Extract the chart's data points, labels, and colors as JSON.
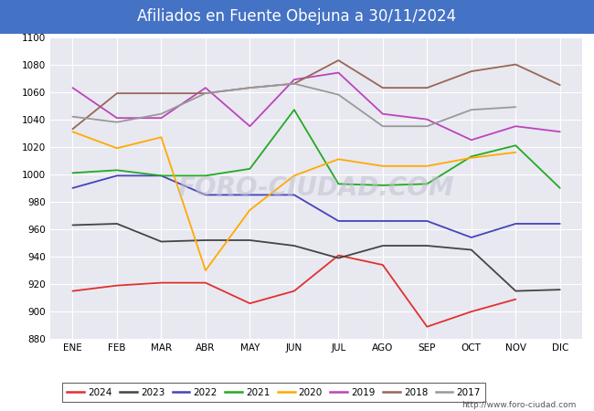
{
  "title": "Afiliados en Fuente Obejuna a 30/11/2024",
  "title_bg_color": "#4472c4",
  "title_text_color": "white",
  "months": [
    "ENE",
    "FEB",
    "MAR",
    "ABR",
    "MAY",
    "JUN",
    "JUL",
    "AGO",
    "SEP",
    "OCT",
    "NOV",
    "DIC"
  ],
  "ylim": [
    880,
    1100
  ],
  "yticks": [
    880,
    900,
    920,
    940,
    960,
    980,
    1000,
    1020,
    1040,
    1060,
    1080,
    1100
  ],
  "series": {
    "2024": {
      "color": "#e03030",
      "data": [
        915,
        919,
        921,
        921,
        906,
        915,
        941,
        934,
        889,
        900,
        909,
        null
      ]
    },
    "2023": {
      "color": "#444444",
      "data": [
        963,
        964,
        951,
        952,
        952,
        948,
        939,
        948,
        948,
        945,
        915,
        916
      ]
    },
    "2022": {
      "color": "#4444bb",
      "data": [
        990,
        999,
        999,
        985,
        985,
        985,
        966,
        966,
        966,
        954,
        964,
        964
      ]
    },
    "2021": {
      "color": "#22aa22",
      "data": [
        1001,
        1003,
        999,
        999,
        1004,
        1047,
        993,
        992,
        993,
        1013,
        1021,
        990
      ]
    },
    "2020": {
      "color": "#ffaa00",
      "data": [
        1031,
        1019,
        1027,
        930,
        974,
        999,
        1011,
        1006,
        1006,
        1012,
        1016,
        null
      ]
    },
    "2019": {
      "color": "#bb44bb",
      "data": [
        1063,
        1041,
        1041,
        1063,
        1035,
        1069,
        1074,
        1044,
        1040,
        1025,
        1035,
        1031
      ]
    },
    "2018": {
      "color": "#996655",
      "data": [
        1033,
        1059,
        1059,
        1059,
        1063,
        1066,
        1083,
        1063,
        1063,
        1075,
        1080,
        1065
      ]
    },
    "2017": {
      "color": "#999999",
      "data": [
        1042,
        1038,
        1044,
        1059,
        1063,
        1066,
        1058,
        1035,
        1035,
        1047,
        1049,
        null
      ]
    }
  },
  "legend_order": [
    "2024",
    "2023",
    "2022",
    "2021",
    "2020",
    "2019",
    "2018",
    "2017"
  ],
  "watermark": "FORO-CIUDAD.COM",
  "url": "http://www.foro-ciudad.com",
  "bg_plot_color": "#e8e8f0",
  "grid_color": "white",
  "title_fontsize": 12,
  "tick_fontsize": 7.5
}
